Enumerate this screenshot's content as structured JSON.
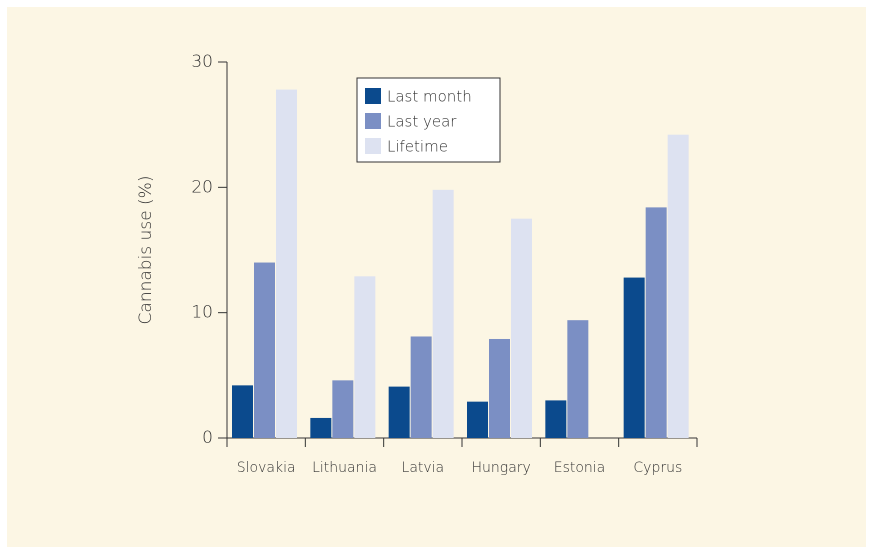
{
  "chart_data": {
    "type": "bar",
    "y_label": "Cannabis use (%)",
    "categories": [
      "Slovakia",
      "Lithuania",
      "Latvia",
      "Hungary",
      "Estonia",
      "Cyprus"
    ],
    "series": [
      {
        "name": "Last month",
        "color": "#0b4a8d",
        "values": [
          4.2,
          1.6,
          4.1,
          2.9,
          3.0,
          12.8
        ]
      },
      {
        "name": "Last year",
        "color": "#7b8fc4",
        "values": [
          14.0,
          4.6,
          8.1,
          7.9,
          9.4,
          18.4
        ]
      },
      {
        "name": "Lifetime",
        "color": "#dde2f1",
        "values": [
          27.8,
          12.9,
          19.8,
          17.5,
          null,
          24.2
        ]
      }
    ],
    "ylim": [
      0,
      30
    ],
    "yticks": [
      0,
      10,
      20,
      30
    ],
    "grid": false,
    "legend": "top"
  }
}
